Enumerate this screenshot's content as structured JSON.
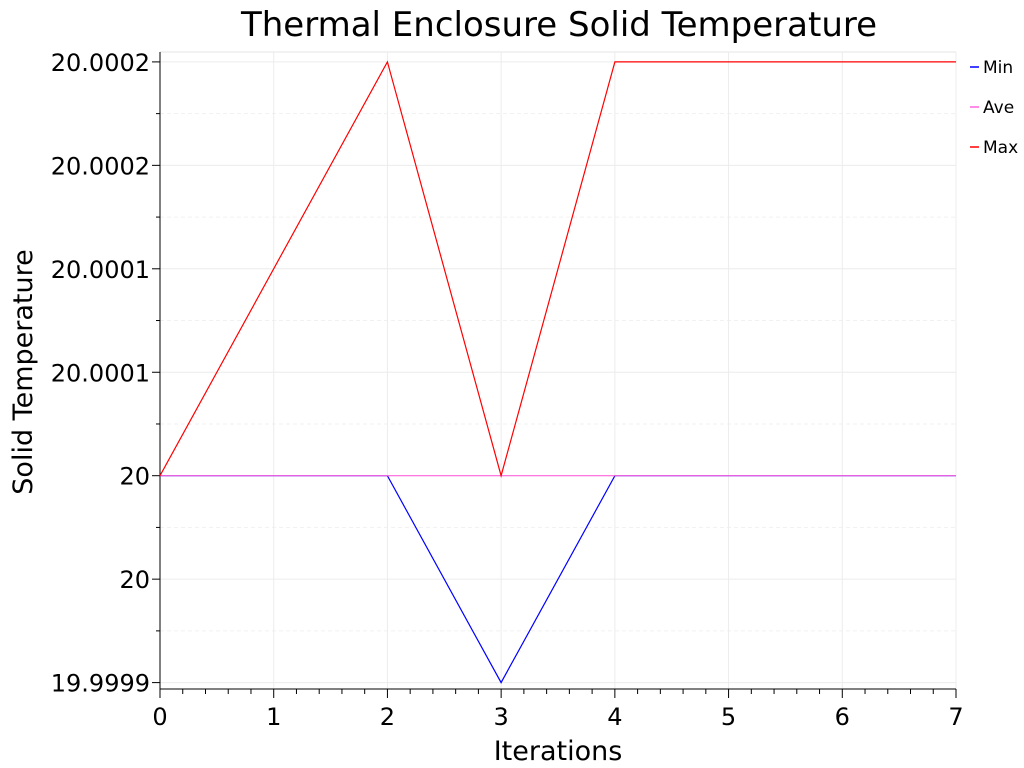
{
  "chart_data": {
    "type": "line",
    "title": "Thermal Enclosure Solid Temperature",
    "xlabel": "Iterations",
    "ylabel": "Solid Temperature",
    "xlim": [
      0,
      7
    ],
    "ylim": [
      19.99987,
      20.0002
    ],
    "x_ticks": [
      0,
      1,
      2,
      3,
      4,
      5,
      6,
      7
    ],
    "y_ticks": [
      {
        "value": 19.99988,
        "label": "19.9999"
      },
      {
        "value": 19.99993,
        "label": "20"
      },
      {
        "value": 19.99998,
        "label": "20"
      },
      {
        "value": 20.00003,
        "label": "20.0001"
      },
      {
        "value": 20.00008,
        "label": "20.0001"
      },
      {
        "value": 20.00013,
        "label": "20.0002"
      },
      {
        "value": 20.00018,
        "label": "20.0002"
      }
    ],
    "grid": true,
    "legend_position": "right",
    "series": [
      {
        "name": "Min",
        "color": "#0000ff",
        "x": [
          0,
          2,
          3,
          4,
          7
        ],
        "y": [
          19.99998,
          19.99998,
          19.99988,
          19.99998,
          19.99998
        ]
      },
      {
        "name": "Ave",
        "color": "#ff66dd",
        "x": [
          0,
          7
        ],
        "y": [
          19.99998,
          19.99998
        ]
      },
      {
        "name": "Max",
        "color": "#ff0000",
        "x": [
          0,
          2,
          3,
          4,
          7
        ],
        "y": [
          19.99998,
          20.00018,
          19.99998,
          20.00018,
          20.00018
        ]
      }
    ]
  }
}
